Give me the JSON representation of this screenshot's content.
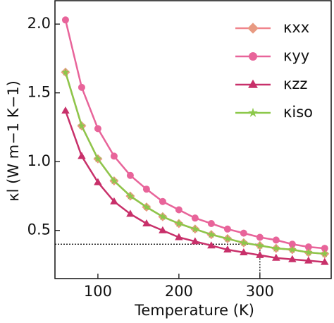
{
  "chart_data": {
    "type": "line",
    "x_label": "Temperature (K)",
    "y_label": "κl (W m−1 K−1)",
    "x": [
      60,
      80,
      100,
      120,
      140,
      160,
      180,
      200,
      220,
      240,
      260,
      280,
      300,
      320,
      340,
      360,
      380
    ],
    "series": [
      {
        "name": "κxx",
        "color": "#f0848c",
        "marker_color": "#e89a82",
        "marker": "diamond",
        "values": [
          1.65,
          1.26,
          1.02,
          0.86,
          0.75,
          0.67,
          0.6,
          0.55,
          0.51,
          0.47,
          0.44,
          0.41,
          0.39,
          0.37,
          0.36,
          0.34,
          0.33
        ]
      },
      {
        "name": "κyy",
        "color": "#e8649a",
        "marker_color": "#e8649a",
        "marker": "circle",
        "values": [
          2.03,
          1.54,
          1.24,
          1.04,
          0.9,
          0.8,
          0.71,
          0.65,
          0.59,
          0.55,
          0.51,
          0.48,
          0.45,
          0.43,
          0.4,
          0.38,
          0.37
        ]
      },
      {
        "name": "κzz",
        "color": "#c8306a",
        "marker_color": "#c8306a",
        "marker": "triangle",
        "values": [
          1.37,
          1.04,
          0.85,
          0.71,
          0.62,
          0.55,
          0.5,
          0.45,
          0.42,
          0.39,
          0.36,
          0.34,
          0.32,
          0.3,
          0.29,
          0.28,
          0.27
        ]
      },
      {
        "name": "κiso",
        "color": "#8cc84a",
        "marker_color": "#8cc84a",
        "marker": "star",
        "values": [
          1.65,
          1.26,
          1.02,
          0.86,
          0.75,
          0.67,
          0.6,
          0.55,
          0.51,
          0.47,
          0.44,
          0.41,
          0.39,
          0.37,
          0.36,
          0.34,
          0.33
        ]
      }
    ],
    "xlim": [
      47,
      388
    ],
    "ylim": [
      0.15,
      2.17
    ],
    "xticks": [
      100,
      200,
      300
    ],
    "yticks": [
      0.5,
      {
        "value": 1.0,
        "label": "1.0"
      },
      1.5,
      {
        "value": 2.0,
        "label": "2.0"
      }
    ],
    "reference_lines": {
      "y": 0.4,
      "x": 300
    },
    "legend": "upper right"
  }
}
